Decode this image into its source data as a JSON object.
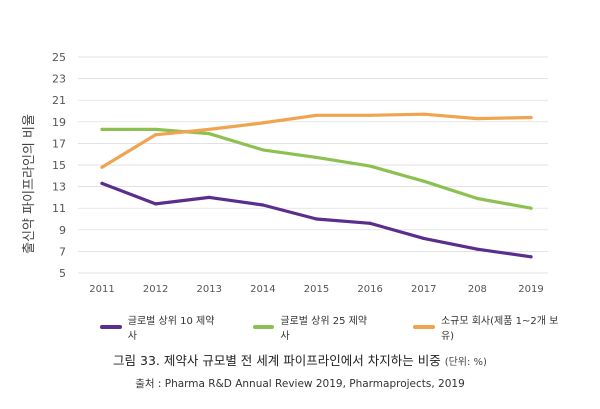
{
  "chart_data": {
    "type": "line",
    "ylabel": "출신약 파이프라인의 비율",
    "ylim": [
      5,
      25
    ],
    "yticks": [
      5,
      7,
      9,
      11,
      13,
      15,
      17,
      19,
      21,
      23,
      25
    ],
    "categories": [
      "2011",
      "2012",
      "2013",
      "2014",
      "2015",
      "2016",
      "2017",
      "208",
      "2019"
    ],
    "grid": true,
    "legend_position": "bottom",
    "series": [
      {
        "name": "글로벌 상위 10 제약사",
        "color": "#5b2d8c",
        "values": [
          13.3,
          11.4,
          12.0,
          11.3,
          10.0,
          9.6,
          8.2,
          7.2,
          6.5
        ]
      },
      {
        "name": "글로벌 상위 25 제약사",
        "color": "#8cc152",
        "values": [
          18.3,
          18.3,
          17.9,
          16.4,
          15.7,
          14.9,
          13.5,
          11.9,
          11.0
        ]
      },
      {
        "name": "소규모 회사(제품 1~2개 보유)",
        "color": "#f0a450",
        "values": [
          14.8,
          17.8,
          18.3,
          18.9,
          19.6,
          19.6,
          19.7,
          19.3,
          19.4
        ]
      }
    ]
  },
  "caption": {
    "title": "그림 33. 제약사 규모별 전 세계 파이프라인에서 차지하는 비중",
    "unit": "(단위: %)"
  },
  "source": "출처 : Pharma R&D Annual Review 2019, Pharmaprojects, 2019"
}
